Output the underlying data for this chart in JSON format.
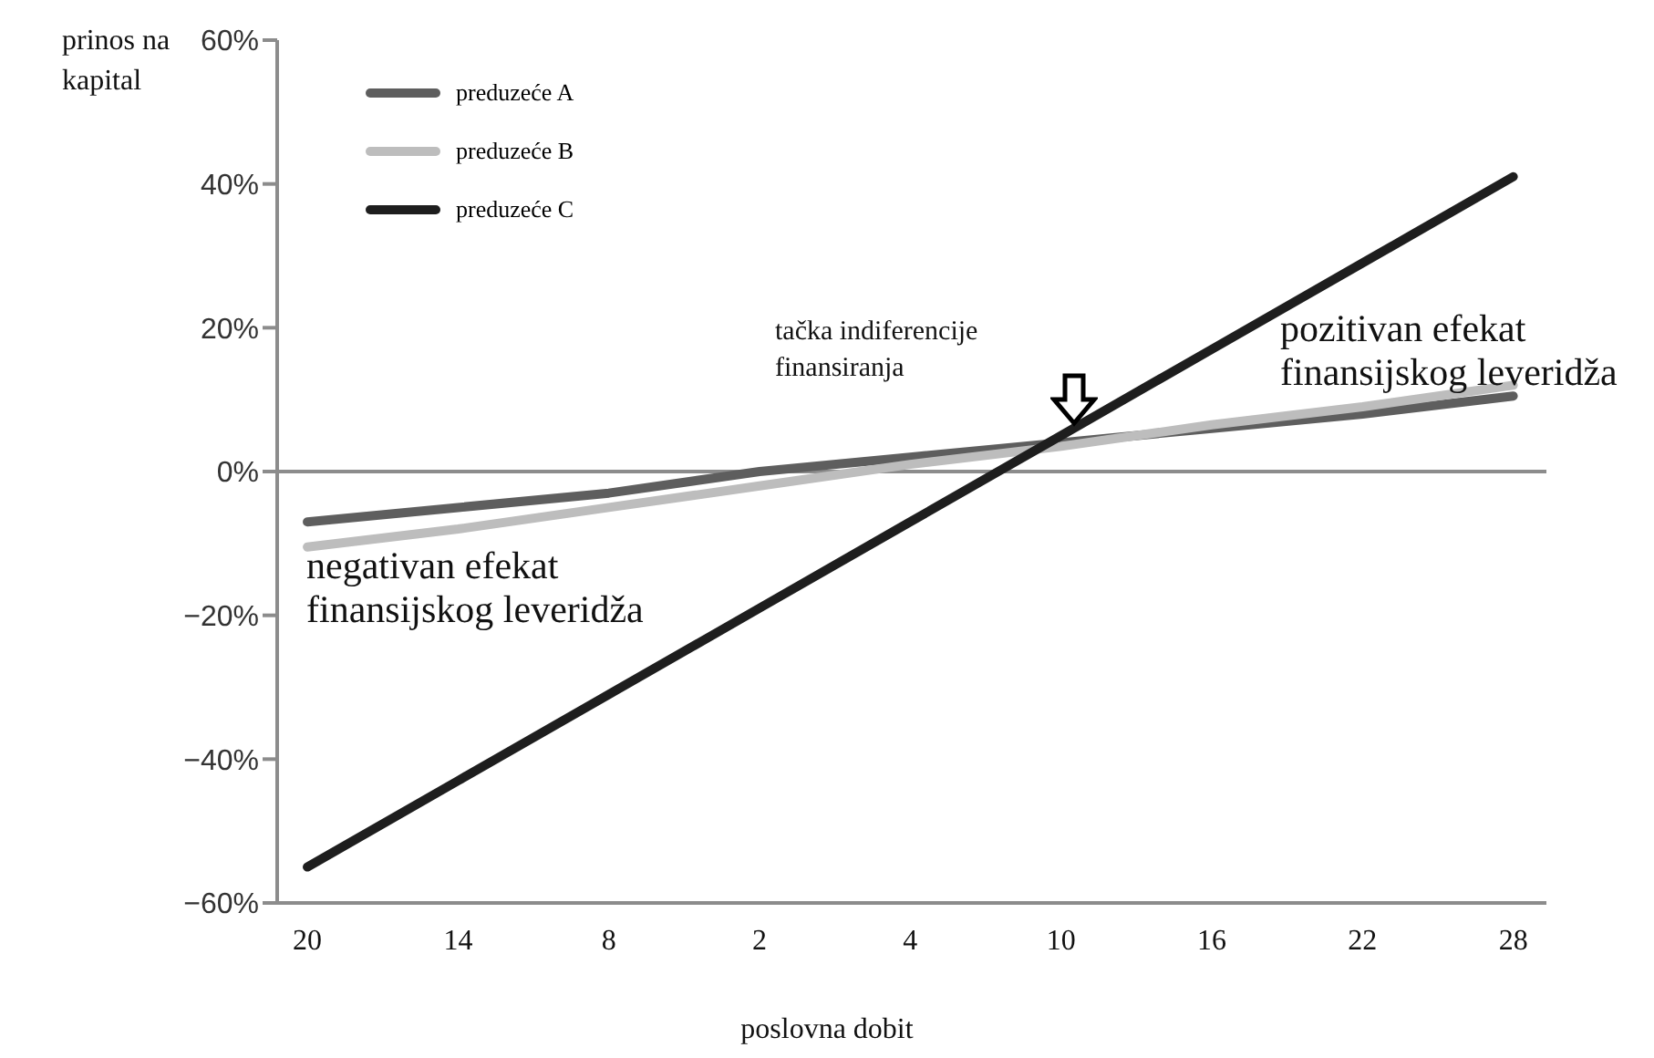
{
  "chart_data": {
    "type": "line",
    "xlabel": "poslovna dobit",
    "ylabel": "prinos na kapital",
    "categories": [
      "20",
      "14",
      "8",
      "2",
      "4",
      "10",
      "16",
      "22",
      "28"
    ],
    "series": [
      {
        "name": "preduzeće A",
        "color": "#5e5e5e",
        "values": [
          -7,
          -5,
          -3,
          0,
          2,
          4,
          6,
          8,
          10.5
        ]
      },
      {
        "name": "preduzeće B",
        "color": "#bdbdbd",
        "values": [
          -10.5,
          -8,
          -5,
          -2,
          1,
          3.5,
          6.5,
          9,
          12
        ]
      },
      {
        "name": "preduzeće C",
        "color": "#1e1e1e",
        "values": [
          -55,
          -43,
          -31,
          -19,
          -7,
          5,
          17,
          29,
          41
        ]
      }
    ],
    "ylim": [
      -60,
      60
    ],
    "yticks": [
      {
        "value": -60,
        "label": "−60%"
      },
      {
        "value": -40,
        "label": "−40%"
      },
      {
        "value": -20,
        "label": "−20%"
      },
      {
        "value": 0,
        "label": "0%"
      },
      {
        "value": 20,
        "label": "20%"
      },
      {
        "value": 40,
        "label": "40%"
      },
      {
        "value": 60,
        "label": "60%"
      }
    ],
    "ref_lines": [
      {
        "axis": "y",
        "value": 0,
        "color": "#8c8c8c"
      }
    ],
    "annotations": [
      "tačka indiferencije finansiranja",
      "pozitivan efekat finansijskog leveridža",
      "negativan efekat finansijskog leveridža"
    ],
    "legend": "top left",
    "grid": false,
    "marker": "none",
    "line_style": "solid"
  }
}
